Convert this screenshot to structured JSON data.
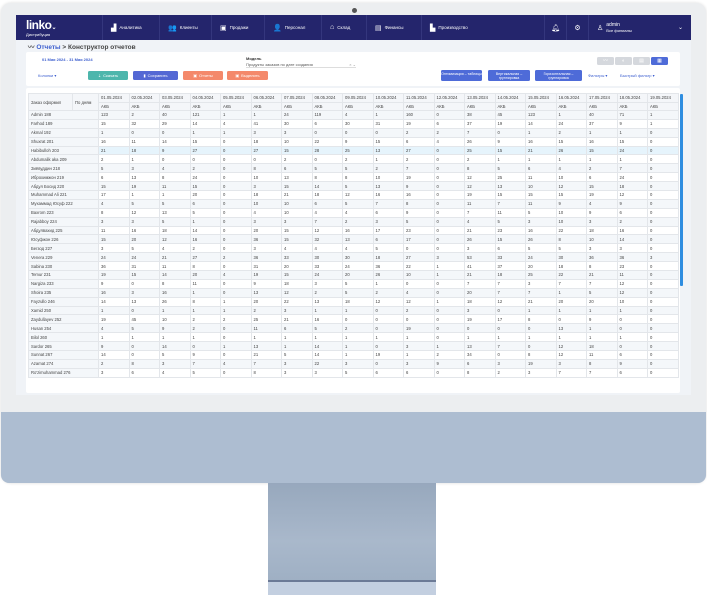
{
  "nav": {
    "logo": "linko",
    "logo_caret": "⌄",
    "subtitle": "Дистрибуция",
    "items": [
      {
        "label": "Аналитика",
        "icon": "chart-icon",
        "glyph": "▟"
      },
      {
        "label": "Клиенты",
        "icon": "users-icon",
        "glyph": "👥"
      },
      {
        "label": "Продажи",
        "icon": "sales-icon",
        "glyph": "▣"
      },
      {
        "label": "Персонал",
        "icon": "staff-icon",
        "glyph": "👤"
      },
      {
        "label": "Склад",
        "icon": "warehouse-icon",
        "glyph": "⌂"
      },
      {
        "label": "Финансы",
        "icon": "wallet-icon",
        "glyph": "▤"
      },
      {
        "label": "Производство",
        "icon": "factory-icon",
        "glyph": "▙"
      }
    ],
    "user": {
      "name": "admin",
      "branch": "Все филиалы"
    }
  },
  "breadcrumb": {
    "parent": "Отчеты",
    "separator": ">",
    "current": "Конструктор отчетов"
  },
  "filters": {
    "date_range": "01 Мая 2024 - 31 Мая 2024",
    "model_label": "Модель",
    "model_value": "Продукты заказов по дате создания",
    "columns": "Колонки ▾",
    "buttons": {
      "download": "Скачать",
      "save": "Сохранить",
      "reports": "Отчеты",
      "highlight": "Выделить"
    },
    "right_buttons": {
      "optimize": "Оптимизация – таблицы",
      "vertical": "Вертикальная – группировка",
      "horizontal": "Горизонтальная – группировка"
    },
    "filters_link": "Фильтры ▾",
    "quick_filter": "Быстрый фильтр ▾",
    "view_modes": [
      "line-chart-icon",
      "pie-chart-icon",
      "bar-chart-icon",
      "table-icon"
    ],
    "active_view": "table-icon"
  },
  "colors": {
    "nav": "#24256c",
    "primary": "#4e6bd8",
    "teal": "#4db6ac",
    "salmon": "#f4896b"
  },
  "table": {
    "row_header": "Заказ оформил",
    "group_header": "По дням",
    "metric": "АКБ",
    "dates": [
      "01.05.2024",
      "02.05.2024",
      "03.05.2024",
      "04.05.2024",
      "05.05.2024",
      "06.05.2024",
      "07.05.2024",
      "08.05.2024",
      "09.05.2024",
      "10.05.2024",
      "11.05.2024",
      "12.05.2024",
      "13.05.2024",
      "14.05.2024",
      "15.05.2024",
      "16.05.2024",
      "17.05.2024",
      "18.05.2024",
      "19.05.2024"
    ],
    "highlighted_row": "Habibulloh 203",
    "rows": [
      {
        "name": "Admin 188",
        "values": [
          123,
          2,
          40,
          121,
          1,
          1,
          24,
          119,
          4,
          1,
          160,
          0,
          38,
          45,
          123,
          1,
          40,
          71,
          1
        ]
      },
      {
        "name": "Farhod 189",
        "values": [
          15,
          32,
          29,
          14,
          4,
          41,
          30,
          6,
          30,
          31,
          19,
          6,
          37,
          19,
          14,
          24,
          37,
          9,
          1
        ]
      },
      {
        "name": "Akmal 192",
        "values": [
          1,
          0,
          0,
          1,
          1,
          3,
          3,
          0,
          0,
          0,
          2,
          2,
          7,
          0,
          1,
          2,
          1,
          1,
          0
        ]
      },
      {
        "name": "Shuxrat 201",
        "values": [
          16,
          11,
          14,
          15,
          0,
          18,
          10,
          22,
          9,
          15,
          6,
          4,
          26,
          9,
          16,
          15,
          16,
          15,
          0
        ]
      },
      {
        "name": "Habibulloh 203",
        "values": [
          21,
          18,
          9,
          27,
          0,
          27,
          15,
          28,
          25,
          13,
          27,
          0,
          25,
          15,
          21,
          26,
          15,
          24,
          0
        ]
      },
      {
        "name": "Abdumalik aka 209",
        "values": [
          2,
          1,
          0,
          0,
          0,
          0,
          2,
          0,
          2,
          1,
          2,
          0,
          2,
          1,
          1,
          1,
          1,
          1,
          0
        ]
      },
      {
        "name": "Зиёвуддин 218",
        "values": [
          5,
          3,
          4,
          2,
          0,
          8,
          6,
          5,
          5,
          2,
          7,
          0,
          8,
          5,
          6,
          4,
          2,
          7,
          0
        ]
      },
      {
        "name": "Иброхимжон 219",
        "values": [
          6,
          13,
          8,
          24,
          0,
          10,
          13,
          8,
          8,
          10,
          19,
          0,
          12,
          25,
          11,
          10,
          6,
          24,
          0
        ]
      },
      {
        "name": "Абдул Босид 220",
        "values": [
          15,
          19,
          11,
          15,
          0,
          3,
          15,
          14,
          5,
          13,
          9,
          0,
          12,
          13,
          10,
          12,
          15,
          18,
          0
        ]
      },
      {
        "name": "Muhammad Ali 221",
        "values": [
          17,
          1,
          1,
          20,
          0,
          18,
          21,
          18,
          12,
          16,
          16,
          0,
          19,
          15,
          15,
          15,
          19,
          12,
          0
        ]
      },
      {
        "name": "Мухаммад Юсуф 222",
        "values": [
          4,
          5,
          5,
          6,
          0,
          10,
          10,
          6,
          5,
          7,
          8,
          0,
          11,
          7,
          11,
          9,
          4,
          9,
          0
        ]
      },
      {
        "name": "Baxrom 223",
        "values": [
          8,
          12,
          13,
          5,
          0,
          4,
          10,
          4,
          4,
          6,
          9,
          0,
          7,
          11,
          5,
          10,
          9,
          6,
          0
        ]
      },
      {
        "name": "Rajabboy 224",
        "values": [
          3,
          3,
          5,
          1,
          0,
          3,
          3,
          7,
          2,
          3,
          5,
          0,
          4,
          5,
          3,
          10,
          3,
          2,
          0
        ]
      },
      {
        "name": "Абдулвахид 225",
        "values": [
          11,
          16,
          18,
          14,
          0,
          20,
          15,
          12,
          16,
          17,
          23,
          0,
          21,
          23,
          16,
          22,
          18,
          16,
          0
        ]
      },
      {
        "name": "Юсуфжон 226",
        "values": [
          15,
          20,
          12,
          16,
          0,
          36,
          15,
          32,
          13,
          6,
          17,
          0,
          26,
          15,
          26,
          8,
          10,
          14,
          0
        ]
      },
      {
        "name": "Бегзод 227",
        "values": [
          3,
          5,
          4,
          2,
          0,
          3,
          4,
          4,
          4,
          5,
          0,
          0,
          3,
          6,
          5,
          5,
          3,
          3,
          0
        ]
      },
      {
        "name": "Venera 229",
        "values": [
          24,
          24,
          21,
          27,
          2,
          36,
          33,
          30,
          30,
          18,
          27,
          3,
          53,
          33,
          24,
          30,
          36,
          36,
          3
        ]
      },
      {
        "name": "Sabina 230",
        "values": [
          36,
          31,
          11,
          8,
          0,
          31,
          20,
          33,
          24,
          36,
          22,
          1,
          41,
          37,
          20,
          18,
          8,
          23,
          0
        ]
      },
      {
        "name": "Temur 231",
        "values": [
          19,
          15,
          14,
          20,
          4,
          19,
          15,
          24,
          20,
          26,
          10,
          1,
          21,
          18,
          25,
          22,
          21,
          11,
          0
        ]
      },
      {
        "name": "Nargiza 233",
        "values": [
          9,
          0,
          8,
          11,
          0,
          9,
          18,
          3,
          5,
          1,
          0,
          0,
          7,
          7,
          3,
          7,
          7,
          12,
          0
        ]
      },
      {
        "name": "Shoira 235",
        "values": [
          16,
          3,
          16,
          1,
          0,
          13,
          12,
          2,
          5,
          2,
          4,
          0,
          20,
          7,
          7,
          1,
          5,
          12,
          0
        ]
      },
      {
        "name": "Fayzullo 246",
        "values": [
          14,
          13,
          26,
          8,
          1,
          20,
          22,
          13,
          18,
          12,
          12,
          1,
          18,
          12,
          21,
          20,
          20,
          10,
          0
        ]
      },
      {
        "name": "Xamid 250",
        "values": [
          1,
          0,
          1,
          1,
          1,
          2,
          3,
          1,
          1,
          0,
          2,
          0,
          3,
          0,
          1,
          1,
          1,
          1,
          0
        ]
      },
      {
        "name": "Zaydullayev 252",
        "values": [
          19,
          45,
          10,
          2,
          2,
          25,
          21,
          16,
          0,
          0,
          0,
          0,
          19,
          17,
          8,
          0,
          9,
          0,
          0
        ]
      },
      {
        "name": "Husan 254",
        "values": [
          4,
          5,
          9,
          2,
          0,
          11,
          6,
          5,
          2,
          0,
          19,
          0,
          0,
          0,
          0,
          13,
          1,
          0,
          0
        ]
      },
      {
        "name": "Bilol 260",
        "values": [
          1,
          1,
          1,
          1,
          0,
          1,
          1,
          1,
          1,
          1,
          1,
          0,
          1,
          1,
          1,
          1,
          1,
          1,
          0
        ]
      },
      {
        "name": "Sardor 265",
        "values": [
          9,
          0,
          14,
          0,
          1,
          13,
          1,
          14,
          1,
          0,
          3,
          1,
          13,
          7,
          0,
          12,
          18,
          0,
          0
        ]
      },
      {
        "name": "Sunnat 267",
        "values": [
          14,
          0,
          5,
          9,
          0,
          21,
          5,
          14,
          1,
          19,
          1,
          2,
          34,
          0,
          8,
          12,
          11,
          6,
          0
        ]
      },
      {
        "name": "Azamat 274",
        "values": [
          2,
          8,
          3,
          7,
          4,
          7,
          3,
          22,
          3,
          0,
          3,
          9,
          6,
          3,
          19,
          3,
          8,
          9,
          0
        ]
      },
      {
        "name": "Ro'zimuhammad 276",
        "values": [
          3,
          6,
          4,
          5,
          0,
          8,
          3,
          3,
          5,
          6,
          6,
          0,
          8,
          2,
          3,
          7,
          7,
          6,
          0
        ]
      }
    ]
  }
}
